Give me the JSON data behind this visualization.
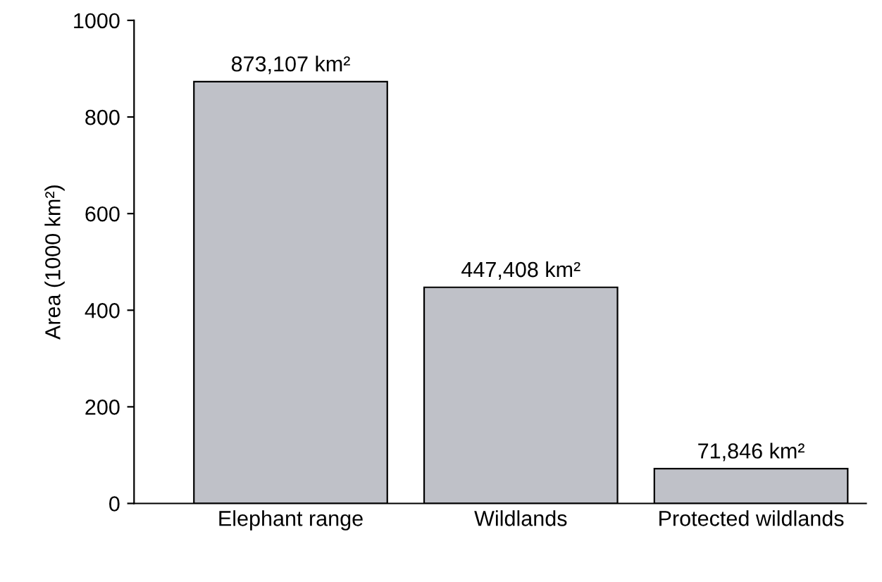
{
  "chart_data": {
    "type": "bar",
    "ylabel": "Area (1000 km²)",
    "categories": [
      "Elephant range",
      "Wildlands",
      "Protected wildlands"
    ],
    "values": [
      873.107,
      447.408,
      71.846
    ],
    "annotations": [
      {
        "text": "873,107 km²",
        "x": "Elephant range",
        "y": 873.107
      },
      {
        "text": "447,408 km²",
        "x": "Wildlands",
        "y": 447.408
      },
      {
        "text": "71,846 km²",
        "x": "Protected wildlands",
        "y": 71.846
      }
    ],
    "color": "#bfc1c8",
    "ylim": [
      0,
      1000
    ],
    "yticks": [
      0,
      200,
      400,
      600,
      800,
      1000
    ],
    "grid": false,
    "legend": false
  }
}
